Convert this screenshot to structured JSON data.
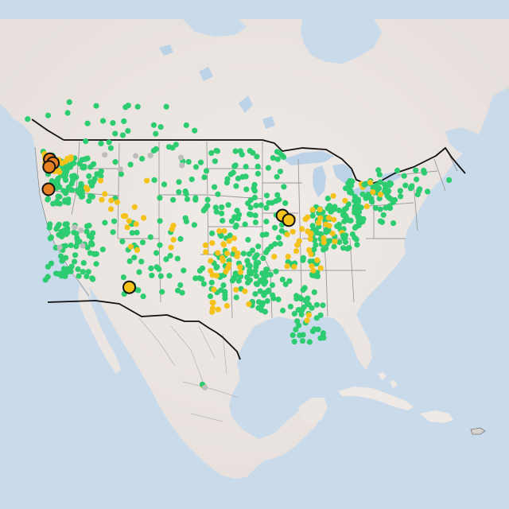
{
  "map": {
    "colors": {
      "water": "#c9daea",
      "land": "#efe9e6",
      "land_shade": "#e3dcd8",
      "lake": "#bcd2e6",
      "border_country": "#111111",
      "border_state": "#9a9a9a",
      "status_green": "#2ecc71",
      "status_yellow": "#f4c21b",
      "status_orange": "#e67e22",
      "status_gray": "#bdbdbd",
      "marker_stroke": "#111111"
    },
    "highlight_markers": [
      {
        "name": "marker-orange-1",
        "status": "orange",
        "lon": -123.5,
        "lat": 48.8
      },
      {
        "name": "marker-orange-2",
        "status": "orange",
        "lon": -123.0,
        "lat": 48.3
      },
      {
        "name": "marker-orange-3",
        "status": "orange",
        "lon": -123.6,
        "lat": 47.8
      },
      {
        "name": "marker-orange-4",
        "status": "orange",
        "lon": -123.7,
        "lat": 44.9
      },
      {
        "name": "marker-yellow-1",
        "status": "yellow",
        "lon": -86.6,
        "lat": 41.5
      },
      {
        "name": "marker-yellow-2",
        "status": "yellow",
        "lon": -85.6,
        "lat": 40.9
      },
      {
        "name": "marker-yellow-3",
        "status": "yellow",
        "lon": -110.9,
        "lat": 32.2
      }
    ],
    "clusters": [
      {
        "status": "green",
        "count": 70,
        "lon": [
          -124.2,
          -116.0
        ],
        "lat": [
          32.5,
          40.5
        ]
      },
      {
        "status": "green",
        "count": 90,
        "lon": [
          -124.0,
          -116.0
        ],
        "lat": [
          43.0,
          49.0
        ]
      },
      {
        "status": "green",
        "count": 35,
        "lon": [
          -120.0,
          -104.0
        ],
        "lat": [
          37.0,
          49.0
        ]
      },
      {
        "status": "green",
        "count": 40,
        "lon": [
          -112.0,
          -95.0
        ],
        "lat": [
          31.0,
          37.0
        ]
      },
      {
        "status": "green",
        "count": 40,
        "lon": [
          -104.0,
          -94.0
        ],
        "lat": [
          38.0,
          49.0
        ]
      },
      {
        "status": "green",
        "count": 60,
        "lon": [
          -97.5,
          -89.0
        ],
        "lat": [
          30.0,
          37.0
        ]
      },
      {
        "status": "green",
        "count": 60,
        "lon": [
          -95.0,
          -86.0
        ],
        "lat": [
          37.0,
          48.0
        ]
      },
      {
        "status": "green",
        "count": 60,
        "lon": [
          -92.0,
          -81.0
        ],
        "lat": [
          29.0,
          36.5
        ]
      },
      {
        "status": "green",
        "count": 30,
        "lon": [
          -85.0,
          -80.0
        ],
        "lat": [
          25.0,
          31.0
        ]
      },
      {
        "status": "green",
        "count": 80,
        "lon": [
          -82.0,
          -74.0
        ],
        "lat": [
          37.0,
          43.0
        ]
      },
      {
        "status": "green",
        "count": 60,
        "lon": [
          -77.0,
          -69.0
        ],
        "lat": [
          40.5,
          46.0
        ]
      },
      {
        "status": "green",
        "count": 25,
        "lon": [
          -72.0,
          -64.0
        ],
        "lat": [
          43.5,
          47.5
        ]
      },
      {
        "status": "green",
        "count": 25,
        "lon": [
          -125.0,
          -100.0
        ],
        "lat": [
          49.5,
          56.0
        ]
      },
      {
        "status": "green",
        "count": 15,
        "lon": [
          -98.0,
          -86.0
        ],
        "lat": [
          48.5,
          50.0
        ]
      },
      {
        "status": "yellow",
        "count": 20,
        "lon": [
          -124.5,
          -120.0
        ],
        "lat": [
          47.0,
          49.5
        ]
      },
      {
        "status": "yellow",
        "count": 25,
        "lon": [
          -86.0,
          -77.0
        ],
        "lat": [
          38.0,
          42.5
        ]
      },
      {
        "status": "yellow",
        "count": 25,
        "lon": [
          -99.0,
          -93.0
        ],
        "lat": [
          33.5,
          39.5
        ]
      },
      {
        "status": "yellow",
        "count": 12,
        "lon": [
          -112.0,
          -103.0
        ],
        "lat": [
          37.0,
          41.5
        ]
      },
      {
        "status": "yellow",
        "count": 12,
        "lon": [
          -88.0,
          -80.0
        ],
        "lat": [
          33.5,
          38.0
        ]
      },
      {
        "status": "yellow",
        "count": 10,
        "lon": [
          -118.0,
          -108.0
        ],
        "lat": [
          42.0,
          48.0
        ]
      },
      {
        "status": "yellow",
        "count": 8,
        "lon": [
          -80.0,
          -70.0
        ],
        "lat": [
          42.0,
          46.5
        ]
      },
      {
        "status": "yellow",
        "count": 8,
        "lon": [
          -98.0,
          -90.0
        ],
        "lat": [
          28.5,
          32.0
        ]
      },
      {
        "status": "gray",
        "count": 6,
        "lon": [
          -115.0,
          -100.0
        ],
        "lat": [
          47.0,
          50.0
        ]
      },
      {
        "status": "gray",
        "count": 4,
        "lon": [
          -122.0,
          -118.0
        ],
        "lat": [
          36.0,
          40.0
        ]
      }
    ],
    "extra_points": [
      {
        "status": "yellow",
        "lon": -123.3,
        "lat": 44.9
      },
      {
        "status": "yellow",
        "lon": -82.7,
        "lat": 27.9
      },
      {
        "status": "yellow",
        "lon": -82.4,
        "lat": 28.6
      },
      {
        "status": "yellow",
        "lon": -95.4,
        "lat": 29.8
      },
      {
        "status": "yellow",
        "lon": -97.6,
        "lat": 30.2
      },
      {
        "status": "yellow",
        "lon": -99.1,
        "lat": 19.4
      },
      {
        "status": "green",
        "lon": -99.3,
        "lat": 19.6
      },
      {
        "status": "gray",
        "lon": -98.9,
        "lat": 19.2
      },
      {
        "status": "green",
        "lon": -80.2,
        "lat": 25.8
      },
      {
        "status": "green",
        "lon": -81.8,
        "lat": 26.5
      },
      {
        "status": "green",
        "lon": -73.9,
        "lat": 40.7
      },
      {
        "status": "green",
        "lon": -71.1,
        "lat": 42.3
      },
      {
        "status": "green",
        "lon": -75.1,
        "lat": 39.9
      },
      {
        "status": "green",
        "lon": -77.0,
        "lat": 38.9
      },
      {
        "status": "green",
        "lon": -63.6,
        "lat": 44.6
      },
      {
        "status": "green",
        "lon": -66.1,
        "lat": 45.3
      },
      {
        "status": "green",
        "lon": -60.2,
        "lat": 46.1
      },
      {
        "status": "green",
        "lon": -123.1,
        "lat": 49.3
      },
      {
        "status": "green",
        "lon": -114.1,
        "lat": 51.0
      },
      {
        "status": "green",
        "lon": -113.5,
        "lat": 53.5
      },
      {
        "status": "green",
        "lon": -106.7,
        "lat": 52.1
      },
      {
        "status": "green",
        "lon": -104.6,
        "lat": 50.4
      },
      {
        "status": "green",
        "lon": -97.1,
        "lat": 49.9
      },
      {
        "status": "green",
        "lon": -79.4,
        "lat": 43.7
      },
      {
        "status": "green",
        "lon": -75.7,
        "lat": 45.4
      },
      {
        "status": "green",
        "lon": -73.6,
        "lat": 45.5
      },
      {
        "status": "green",
        "lon": -71.2,
        "lat": 46.8
      },
      {
        "status": "green",
        "lon": -120.4,
        "lat": 56.2
      },
      {
        "status": "green",
        "lon": -127.0,
        "lat": 54.0
      },
      {
        "status": "green",
        "lon": -135.0,
        "lat": 56.0
      }
    ]
  }
}
